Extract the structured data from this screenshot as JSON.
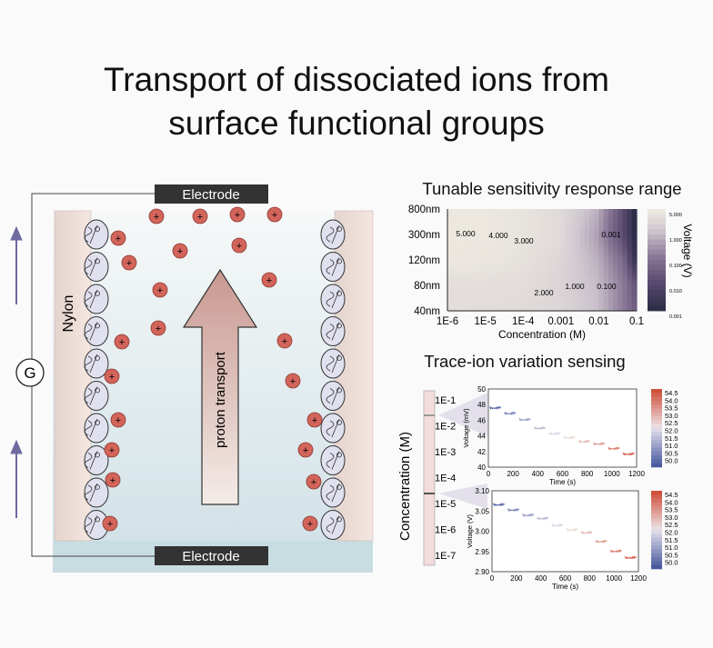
{
  "title": [
    "Transport of dissociated ions from",
    "surface functional groups"
  ],
  "diagram": {
    "electrode_top": "Electrode",
    "electrode_bottom": "Electrode",
    "wall_label": "Nylon",
    "galvanometer": "G",
    "arrow_label": "proton transport",
    "cation_symbol": "+",
    "colors": {
      "electrode": "#2f2f2f",
      "cation": "#d2645a",
      "wall": "#ecdcd6",
      "channel": "#dbe8ec",
      "arrow": "#d8aaa4",
      "wire_arrow": "#6e6aa0"
    }
  },
  "panel1": {
    "title": "Tunable sensitivity response range"
  },
  "panel2": {
    "title": "Trace-ion variation sensing",
    "conc_label": "Concentration (M)",
    "conc_ticks": [
      "1E-1",
      "1E-2",
      "1E-3",
      "1E-4",
      "1E-5",
      "1E-6",
      "1E-7"
    ]
  },
  "chart_data": [
    {
      "type": "heatmap",
      "xlabel": "Concentration (M)",
      "ylabel": "",
      "x_ticks": [
        "1E-6",
        "1E-5",
        "1E-4",
        "0.001",
        "0.01",
        "0.1"
      ],
      "y_ticks": [
        "40nm",
        "80nm",
        "120nm",
        "300nm",
        "800nm"
      ],
      "x": [
        1e-06,
        1e-05,
        0.0001,
        0.001,
        0.01,
        0.05,
        0.1
      ],
      "y": [
        "40nm",
        "80nm",
        "120nm",
        "300nm",
        "800nm"
      ],
      "z": [
        [
          3.0,
          2.8,
          2.5,
          2.0,
          0.8,
          0.1,
          0.03
        ],
        [
          3.0,
          3.0,
          2.8,
          1.8,
          0.7,
          0.1,
          0.02
        ],
        [
          5.0,
          4.5,
          3.5,
          2.0,
          0.5,
          0.05,
          0.002
        ],
        [
          5.0,
          5.0,
          4.0,
          2.5,
          0.3,
          0.01,
          0.001
        ],
        [
          5.0,
          5.0,
          4.0,
          2.5,
          0.5,
          0.01,
          0.001
        ]
      ],
      "contour_labels": [
        "5.000",
        "4.000",
        "3.000",
        "2.000",
        "1.000",
        "0.100",
        "0.001"
      ],
      "colorbar": {
        "label": "Voltage (V)",
        "ticks": [
          "5.000",
          "1.000",
          "0.100",
          "0.010",
          "0.001"
        ],
        "scale": "log"
      }
    },
    {
      "type": "line",
      "xlabel": "Time (s)",
      "ylabel": "Voltage (mV)",
      "xlim": [
        0,
        1200
      ],
      "ylim": [
        40,
        50
      ],
      "x_ticks": [
        "0",
        "200",
        "400",
        "600",
        "800",
        "1000",
        "1200"
      ],
      "y_ticks": [
        "40",
        "42",
        "44",
        "46",
        "48",
        "50"
      ],
      "segments_start": [
        0,
        120,
        240,
        360,
        480,
        600,
        720,
        840,
        960,
        1080
      ],
      "values": [
        47.6,
        46.9,
        46.1,
        45.0,
        44.3,
        43.8,
        43.3,
        43.0,
        42.4,
        41.7
      ],
      "colorbar": {
        "ticks": [
          "54.5",
          "54.0",
          "53.5",
          "53.0",
          "52.5",
          "52.0",
          "51.5",
          "51.0",
          "50.5",
          "50.0"
        ],
        "low_color": "#4a5aa0",
        "high_color": "#d0503c"
      }
    },
    {
      "type": "line",
      "xlabel": "Time (s)",
      "ylabel": "Voltage (V)",
      "xlim": [
        0,
        1200
      ],
      "ylim": [
        2.9,
        3.1
      ],
      "x_ticks": [
        "0",
        "200",
        "400",
        "600",
        "800",
        "1000",
        "1200"
      ],
      "y_ticks": [
        "2.90",
        "2.95",
        "3.00",
        "3.05",
        "3.10"
      ],
      "segments_start": [
        0,
        120,
        240,
        360,
        480,
        600,
        720,
        840,
        960,
        1080
      ],
      "values": [
        3.066,
        3.053,
        3.04,
        3.032,
        3.015,
        3.004,
        2.997,
        2.975,
        2.951,
        2.935
      ],
      "colorbar": {
        "ticks": [
          "54.5",
          "54.0",
          "53.5",
          "53.0",
          "52.5",
          "52.0",
          "51.5",
          "51.0",
          "50.5",
          "50.0"
        ],
        "low_color": "#4a5aa0",
        "high_color": "#d0503c"
      }
    }
  ]
}
